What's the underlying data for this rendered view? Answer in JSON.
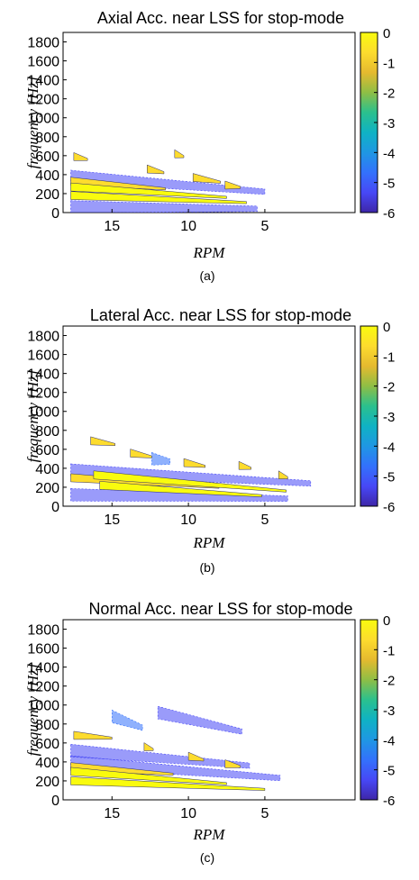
{
  "colorbar": {
    "ticks": [
      "0",
      "-1",
      "-2",
      "-3",
      "-4",
      "-5",
      "-6"
    ],
    "colors": [
      "#3e26a8",
      "#4748f6",
      "#3371fc",
      "#1f97e3",
      "#0fb2c4",
      "#2bc08d",
      "#8fbe45",
      "#e5ba2f",
      "#fddc2e",
      "#f9fb0e"
    ]
  },
  "chart_data": [
    {
      "type": "heatmap",
      "title": "Axial Acc. near LSS for stop-mode",
      "xlabel": "RPM",
      "ylabel": "frequency [Hz]",
      "caption": "(a)",
      "x_reversed": true,
      "xlim": [
        18.2,
        -0.9
      ],
      "ylim": [
        0,
        1900
      ],
      "xticks": [
        15,
        10,
        5
      ],
      "yticks": [
        0,
        200,
        400,
        600,
        800,
        1000,
        1200,
        1400,
        1600,
        1800
      ],
      "clim": [
        -6,
        0
      ],
      "bands": [
        {
          "rpm_start": 17.7,
          "rpm_end": 6.2,
          "freq_start": 180,
          "freq_end": 105,
          "level": 0
        },
        {
          "rpm_start": 17.7,
          "rpm_end": 7.5,
          "freq_start": 270,
          "freq_end": 160,
          "level": -0.3
        },
        {
          "rpm_start": 17.7,
          "rpm_end": 11.5,
          "freq_start": 330,
          "freq_end": 250,
          "level": -0.8
        },
        {
          "rpm_start": 17.7,
          "rpm_end": 5.0,
          "freq_start": 380,
          "freq_end": 220,
          "level": -5.2
        },
        {
          "rpm_start": 17.5,
          "rpm_end": 16.6,
          "freq_start": 590,
          "freq_end": 560,
          "level": -0.6
        },
        {
          "rpm_start": 12.7,
          "rpm_end": 11.6,
          "freq_start": 460,
          "freq_end": 420,
          "level": -0.6
        },
        {
          "rpm_start": 10.9,
          "rpm_end": 10.3,
          "freq_start": 620,
          "freq_end": 590,
          "level": -0.7
        },
        {
          "rpm_start": 9.7,
          "rpm_end": 7.9,
          "freq_start": 370,
          "freq_end": 320,
          "level": -0.6
        },
        {
          "rpm_start": 7.6,
          "rpm_end": 6.6,
          "freq_start": 290,
          "freq_end": 265,
          "level": -0.7
        },
        {
          "rpm_start": 17.7,
          "rpm_end": 5.5,
          "freq_start": 60,
          "freq_end": 40,
          "level": -5.5
        }
      ]
    },
    {
      "type": "heatmap",
      "title": "Lateral Acc. near LSS for stop-mode",
      "xlabel": "RPM",
      "ylabel": "frequency [Hz]",
      "caption": "(b)",
      "x_reversed": true,
      "xlim": [
        18.2,
        -0.9
      ],
      "ylim": [
        0,
        1900
      ],
      "xticks": [
        15,
        10,
        5
      ],
      "yticks": [
        0,
        200,
        400,
        600,
        800,
        1000,
        1200,
        1400,
        1600,
        1800
      ],
      "clim": [
        -6,
        0
      ],
      "bands": [
        {
          "rpm_start": 15.8,
          "rpm_end": 5.2,
          "freq_start": 220,
          "freq_end": 110,
          "level": 0
        },
        {
          "rpm_start": 16.2,
          "rpm_end": 3.6,
          "freq_start": 330,
          "freq_end": 160,
          "level": -0.3
        },
        {
          "rpm_start": 17.7,
          "rpm_end": 8.0,
          "freq_start": 300,
          "freq_end": 200,
          "level": -0.5
        },
        {
          "rpm_start": 17.7,
          "rpm_end": 2.0,
          "freq_start": 380,
          "freq_end": 240,
          "level": -5.1
        },
        {
          "rpm_start": 17.7,
          "rpm_end": 3.5,
          "freq_start": 120,
          "freq_end": 80,
          "level": -5.4
        },
        {
          "rpm_start": 16.4,
          "rpm_end": 14.8,
          "freq_start": 690,
          "freq_end": 650,
          "level": -0.6
        },
        {
          "rpm_start": 13.8,
          "rpm_end": 12.4,
          "freq_start": 560,
          "freq_end": 520,
          "level": -0.6
        },
        {
          "rpm_start": 10.3,
          "rpm_end": 8.9,
          "freq_start": 460,
          "freq_end": 420,
          "level": -0.6
        },
        {
          "rpm_start": 12.4,
          "rpm_end": 11.2,
          "freq_start": 500,
          "freq_end": 470,
          "level": -5.0
        },
        {
          "rpm_start": 6.7,
          "rpm_end": 5.9,
          "freq_start": 430,
          "freq_end": 400,
          "level": -0.8
        },
        {
          "rpm_start": 4.1,
          "rpm_end": 3.5,
          "freq_start": 330,
          "freq_end": 300,
          "level": -0.8
        }
      ]
    },
    {
      "type": "heatmap",
      "title": "Normal Acc. near LSS for stop-mode",
      "xlabel": "RPM",
      "ylabel": "frequency [Hz]",
      "caption": "(c)",
      "x_reversed": true,
      "xlim": [
        18.2,
        -0.9
      ],
      "ylim": [
        0,
        1900
      ],
      "xticks": [
        15,
        10,
        5
      ],
      "yticks": [
        0,
        200,
        400,
        600,
        800,
        1000,
        1200,
        1400,
        1600,
        1800
      ],
      "clim": [
        -6,
        0
      ],
      "bands": [
        {
          "rpm_start": 17.7,
          "rpm_end": 5.0,
          "freq_start": 200,
          "freq_end": 110,
          "level": 0
        },
        {
          "rpm_start": 17.7,
          "rpm_end": 7.5,
          "freq_start": 300,
          "freq_end": 170,
          "level": -0.3
        },
        {
          "rpm_start": 17.7,
          "rpm_end": 11.0,
          "freq_start": 350,
          "freq_end": 270,
          "level": -0.7
        },
        {
          "rpm_start": 17.7,
          "rpm_end": 4.0,
          "freq_start": 400,
          "freq_end": 230,
          "level": -5.1
        },
        {
          "rpm_start": 17.7,
          "rpm_end": 6.0,
          "freq_start": 520,
          "freq_end": 360,
          "level": -5.3
        },
        {
          "rpm_start": 17.5,
          "rpm_end": 15.0,
          "freq_start": 680,
          "freq_end": 650,
          "level": -0.6
        },
        {
          "rpm_start": 15.0,
          "rpm_end": 13.0,
          "freq_start": 880,
          "freq_end": 760,
          "level": -5.0
        },
        {
          "rpm_start": 12.0,
          "rpm_end": 6.5,
          "freq_start": 920,
          "freq_end": 720,
          "level": -5.2
        },
        {
          "rpm_start": 10.0,
          "rpm_end": 9.0,
          "freq_start": 460,
          "freq_end": 420,
          "level": -0.6
        },
        {
          "rpm_start": 12.9,
          "rpm_end": 12.3,
          "freq_start": 560,
          "freq_end": 530,
          "level": -0.7
        },
        {
          "rpm_start": 7.6,
          "rpm_end": 6.6,
          "freq_start": 380,
          "freq_end": 350,
          "level": -0.7
        }
      ]
    }
  ]
}
